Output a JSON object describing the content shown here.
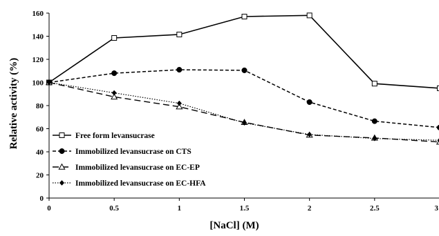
{
  "chart_data": {
    "type": "line",
    "title": "",
    "xlabel": "[NaCl] (M)",
    "ylabel": "Relative activity (%)",
    "xlim": [
      0,
      3
    ],
    "ylim": [
      0,
      160
    ],
    "xticks": [
      "0",
      "0.5",
      "1",
      "1.5",
      "2",
      "2.5",
      "3"
    ],
    "yticks": [
      "0",
      "20",
      "40",
      "60",
      "80",
      "100",
      "120",
      "140",
      "160"
    ],
    "grid": false,
    "legend_position": "left-lower",
    "x": [
      0,
      0.5,
      1,
      1.5,
      2,
      2.5,
      3
    ],
    "series": [
      {
        "name": "Free form levansucrase",
        "values": [
          100,
          138.5,
          141.5,
          157,
          158,
          99,
          95
        ],
        "marker": "open-square",
        "line": "solid",
        "color": "#000000"
      },
      {
        "name": "Immobilized levansucrase on CTS",
        "values": [
          100,
          108,
          111,
          110.5,
          83,
          66.5,
          61
        ],
        "marker": "filled-circle",
        "line": "dashed",
        "color": "#000000"
      },
      {
        "name": "Immobilized levansucrase on EC-EP",
        "values": [
          100,
          87.5,
          79,
          65.5,
          54.5,
          52,
          48.5
        ],
        "marker": "open-triangle",
        "line": "long-dash",
        "color": "#000000"
      },
      {
        "name": "Immobilized levansucrase on EC-HFA",
        "values": [
          100,
          91,
          82,
          65,
          55,
          51.5,
          50
        ],
        "marker": "filled-diamond",
        "line": "dotted",
        "color": "#000000"
      }
    ]
  }
}
